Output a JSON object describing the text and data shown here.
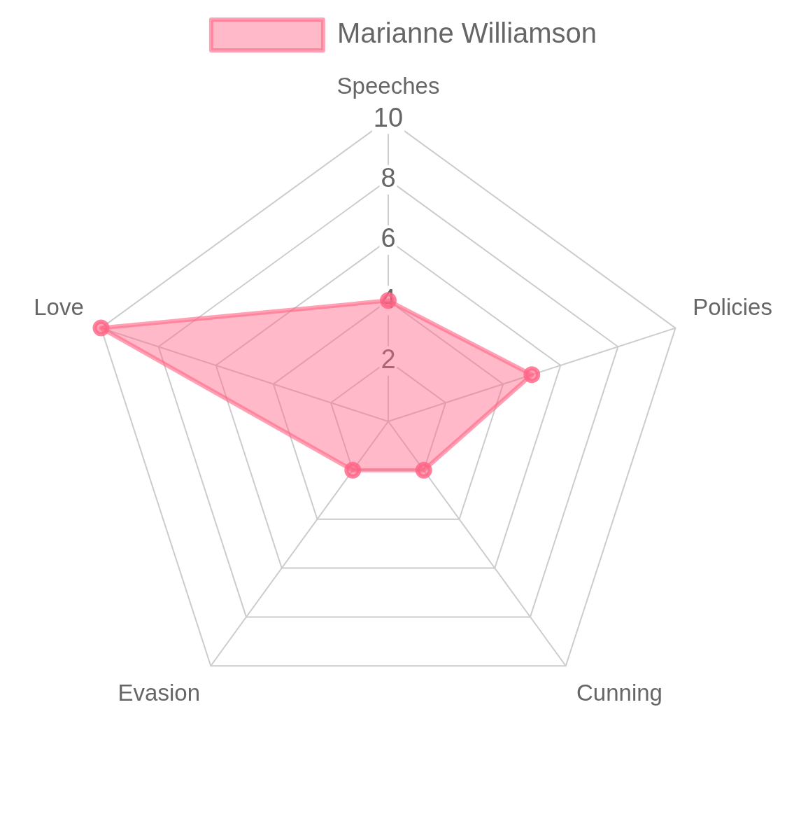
{
  "chart_data": {
    "type": "radar",
    "categories": [
      "Speeches",
      "Policies",
      "Cunning",
      "Evasion",
      "Love"
    ],
    "series": [
      {
        "name": "Marianne Williamson",
        "color": "#ff6384",
        "values": [
          4,
          5,
          2,
          2,
          10
        ]
      }
    ],
    "ylim": [
      0,
      10
    ],
    "yticks": [
      2,
      4,
      6,
      8,
      10
    ],
    "grid": true,
    "legend": "top",
    "marker": "circle"
  }
}
